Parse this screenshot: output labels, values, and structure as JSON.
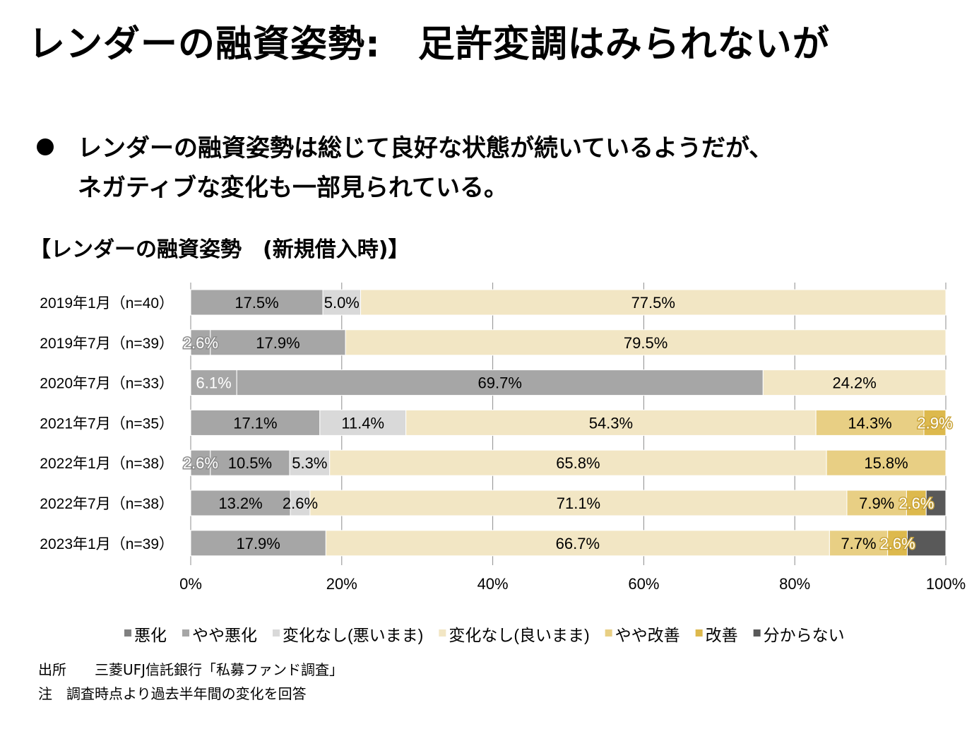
{
  "title": "レンダーの融資姿勢:　足許変調はみられないが",
  "bullet": {
    "line1": "レンダーの融資姿勢は総じて良好な状態が続いているようだが、",
    "line2": "ネガティブな変化も一部見られている。"
  },
  "source": {
    "line1": "出所　　三菱UFJ信託銀行「私募ファンド調査」",
    "line2": "注　調査時点より過去半年間の変化を回答"
  },
  "chart_data": {
    "type": "bar",
    "orientation": "horizontal",
    "stacked": "percent",
    "title": "【レンダーの融資姿勢　(新規借入時)】",
    "categories": [
      "2019年1月（n=40）",
      "2019年7月（n=39）",
      "2020年7月（n=33）",
      "2021年7月（n=35）",
      "2022年1月（n=38）",
      "2022年7月（n=38）",
      "2023年1月（n=39）"
    ],
    "series": [
      {
        "name": "悪化",
        "color": "#808080",
        "values": [
          0,
          0,
          0,
          0,
          0,
          0,
          0
        ]
      },
      {
        "name": "やや悪化",
        "color": "#a6a6a6",
        "values": [
          17.5,
          2.6,
          6.1,
          17.1,
          2.6,
          13.2,
          17.9
        ]
      },
      {
        "name": "やや悪化",
        "color": "#a6a6a6",
        "values": [
          0,
          17.9,
          69.7,
          0,
          10.5,
          0,
          0
        ]
      },
      {
        "name": "変化なし(悪いまま)",
        "color": "#d9d9d9",
        "values": [
          5.0,
          0,
          0,
          11.4,
          5.3,
          2.6,
          0
        ]
      },
      {
        "name": "変化なし(良いまま)",
        "color": "#f2e6c4",
        "values": [
          77.5,
          79.5,
          24.2,
          54.3,
          65.8,
          71.1,
          66.7
        ]
      },
      {
        "name": "やや改善",
        "color": "#e8cf84",
        "values": [
          0,
          0,
          0,
          14.3,
          15.8,
          7.9,
          7.7
        ]
      },
      {
        "name": "改善",
        "color": "#ddb94d",
        "values": [
          0,
          0,
          0,
          2.9,
          0,
          2.6,
          2.6
        ]
      },
      {
        "name": "分からない",
        "color": "#595959",
        "values": [
          0,
          0,
          0,
          0,
          0,
          2.6,
          5.1
        ]
      }
    ],
    "legend_series": [
      {
        "name": "悪化",
        "color": "#808080"
      },
      {
        "name": "やや悪化",
        "color": "#a6a6a6"
      },
      {
        "name": "変化なし(悪いまま)",
        "color": "#d9d9d9"
      },
      {
        "name": "変化なし(良いまま)",
        "color": "#f2e6c4"
      },
      {
        "name": "やや改善",
        "color": "#e8cf84"
      },
      {
        "name": "改善",
        "color": "#ddb94d"
      },
      {
        "name": "分からない",
        "color": "#595959"
      }
    ],
    "labels": [
      [
        {
          "seg": 1,
          "text": "17.5%"
        },
        {
          "seg": 3,
          "text": "5.0%"
        },
        {
          "seg": 4,
          "text": "77.5%"
        }
      ],
      [
        {
          "seg": 1,
          "text": "2.6%",
          "style": "halo"
        },
        {
          "seg": 2,
          "text": "17.9%"
        },
        {
          "seg": 4,
          "text": "79.5%"
        }
      ],
      [
        {
          "seg": 1,
          "text": "6.1%",
          "style": "white"
        },
        {
          "seg": 2,
          "text": "69.7%"
        },
        {
          "seg": 4,
          "text": "24.2%"
        }
      ],
      [
        {
          "seg": 1,
          "text": "17.1%"
        },
        {
          "seg": 3,
          "text": "11.4%"
        },
        {
          "seg": 4,
          "text": "54.3%"
        },
        {
          "seg": 5,
          "text": "14.3%"
        },
        {
          "seg": 6,
          "text": "2.9%",
          "style": "gold"
        }
      ],
      [
        {
          "seg": 1,
          "text": "2.6%",
          "style": "halo"
        },
        {
          "seg": 2,
          "text": "10.5%"
        },
        {
          "seg": 3,
          "text": "5.3%"
        },
        {
          "seg": 4,
          "text": "65.8%"
        },
        {
          "seg": 5,
          "text": "15.8%"
        }
      ],
      [
        {
          "seg": 1,
          "text": "13.2%"
        },
        {
          "seg": 3,
          "text": "2.6%"
        },
        {
          "seg": 4,
          "text": "71.1%"
        },
        {
          "seg": 5,
          "text": "7.9%"
        },
        {
          "seg": 6,
          "text": "2.6%",
          "style": "gold"
        }
      ],
      [
        {
          "seg": 1,
          "text": "17.9%"
        },
        {
          "seg": 4,
          "text": "66.7%"
        },
        {
          "seg": 5,
          "text": "7.7%"
        },
        {
          "seg": 6,
          "text": "2.6%",
          "style": "gold"
        }
      ]
    ],
    "xlim": [
      0,
      100
    ],
    "x_ticks": [
      "0%",
      "20%",
      "40%",
      "60%",
      "80%",
      "100%"
    ],
    "grid": true,
    "legend": "bottom"
  }
}
